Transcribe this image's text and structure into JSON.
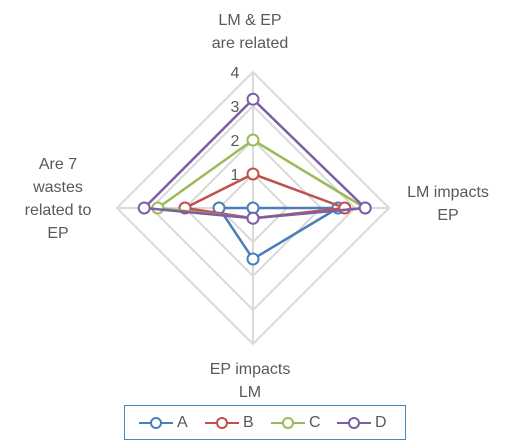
{
  "chart_data": {
    "type": "radar",
    "axes": [
      "LM & EP\nare related",
      "LM impacts\nEP",
      "EP impacts\nLM",
      "Are 7\nwastes\nrelated to\nEP"
    ],
    "rlim": [
      0,
      4
    ],
    "ticks": [
      "1",
      "2",
      "3",
      "4"
    ],
    "legend_position": "bottom",
    "series": [
      {
        "name": "A",
        "color": "#4a7ebb",
        "values": [
          0,
          2.5,
          1.5,
          1
        ]
      },
      {
        "name": "B",
        "color": "#c0504d",
        "values": [
          1,
          2.7,
          0.3,
          2
        ]
      },
      {
        "name": "C",
        "color": "#9bbb59",
        "values": [
          2,
          3.3,
          0.3,
          2.8
        ]
      },
      {
        "name": "D",
        "color": "#7b5ea7",
        "values": [
          3.2,
          3.3,
          0.3,
          3.2
        ]
      }
    ]
  }
}
